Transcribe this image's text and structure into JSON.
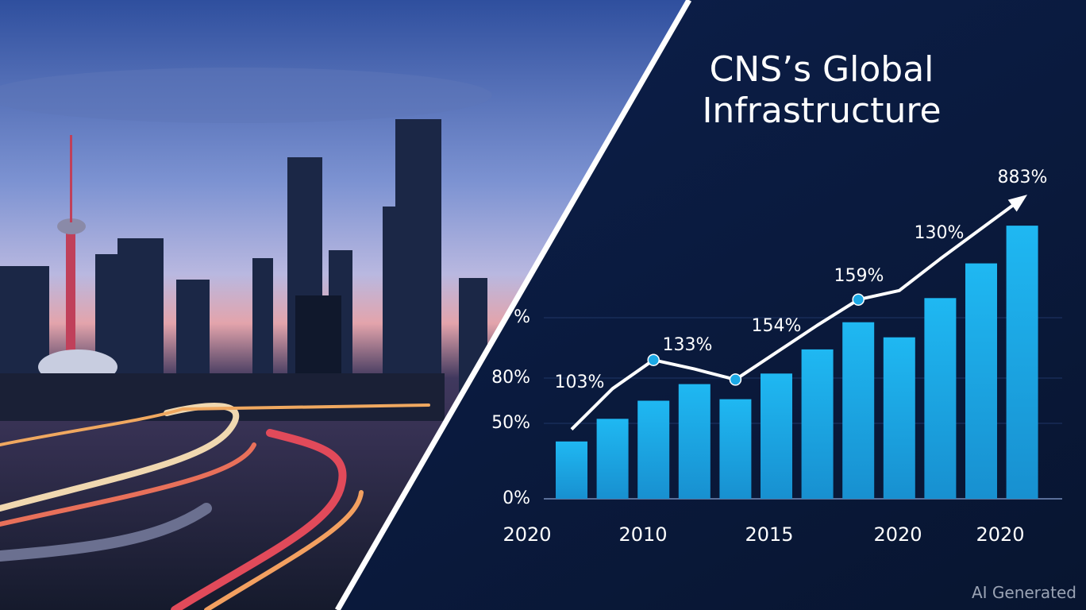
{
  "chart_data": {
    "type": "bar",
    "title": "CNS’s Global Infrastructure",
    "values": [
      38,
      53,
      65,
      76,
      66,
      83,
      99,
      117,
      107,
      133,
      156,
      181
    ],
    "color": "#1ba9e6",
    "line": {
      "type": "line",
      "color": "#ffffff",
      "marker_color": "#1ba9e6",
      "markers": [
        2,
        4,
        7
      ],
      "values": [
        46,
        73,
        92,
        86,
        79,
        97,
        115,
        132,
        138,
        159,
        179,
        199
      ]
    },
    "ylim": [
      0,
      200
    ],
    "yticks": [
      {
        "value": 0,
        "label": "0%"
      },
      {
        "value": 50,
        "label": "50%"
      },
      {
        "value": 80,
        "label": "80%"
      },
      {
        "value": 120,
        "label": "%"
      }
    ],
    "grid": true,
    "x_labels": [
      "2020",
      "2010",
      "2015",
      "2020",
      "2020"
    ],
    "annotations": [
      "103%",
      "133%",
      "154%",
      "159%",
      "130%",
      "883%"
    ]
  },
  "watermark": "AI Generated"
}
